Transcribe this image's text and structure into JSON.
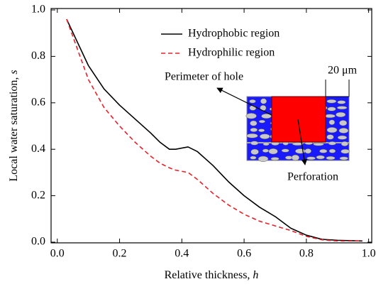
{
  "chart_data": {
    "type": "line",
    "x_label": "Relative thickness,",
    "x_label_var": "h",
    "y_label": "Local water saturation,",
    "y_label_var": "s",
    "x": [
      0.03,
      0.1,
      0.15,
      0.2,
      0.25,
      0.3,
      0.33,
      0.36,
      0.38,
      0.42,
      0.45,
      0.5,
      0.55,
      0.6,
      0.65,
      0.7,
      0.75,
      0.8,
      0.85,
      0.9,
      0.98
    ],
    "series": [
      {
        "name": "Hydrophobic region",
        "color": "#000000",
        "dash": false,
        "values": [
          0.96,
          0.76,
          0.66,
          0.59,
          0.53,
          0.47,
          0.43,
          0.4,
          0.4,
          0.41,
          0.39,
          0.33,
          0.26,
          0.2,
          0.15,
          0.11,
          0.06,
          0.03,
          0.012,
          0.008,
          0.005
        ]
      },
      {
        "name": "Hydrophilic region",
        "color": "#e8202a",
        "dash": true,
        "values": [
          0.96,
          0.7,
          0.58,
          0.5,
          0.43,
          0.37,
          0.34,
          0.32,
          0.31,
          0.3,
          0.27,
          0.21,
          0.16,
          0.12,
          0.09,
          0.07,
          0.05,
          0.025,
          0.01,
          0.005,
          0.005
        ]
      }
    ],
    "xlim": [
      -0.02,
      1.01
    ],
    "xticks": [
      {
        "value": 0,
        "label": "0.0"
      },
      0.2,
      0.4,
      0.6,
      0.8,
      {
        "value": 1,
        "label": "1.0"
      }
    ],
    "ylim": [
      0,
      1
    ],
    "yticks": [
      {
        "value": 0,
        "label": "0.0"
      },
      0.2,
      0.4,
      0.6,
      0.8,
      {
        "value": 1,
        "label": "1.0"
      }
    ],
    "annotations": [
      "Perimeter of hole",
      "Perforation",
      "20 μm"
    ]
  }
}
